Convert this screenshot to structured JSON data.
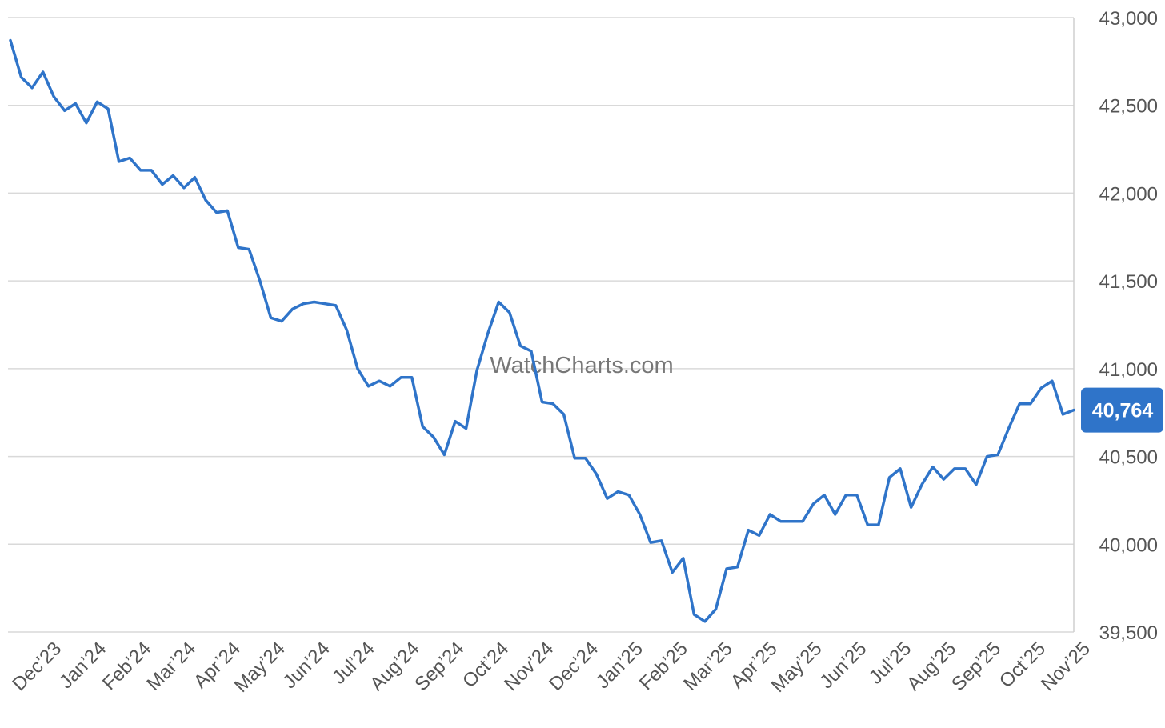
{
  "watermark": "WatchCharts.com",
  "chart_data": {
    "type": "line",
    "title": "",
    "xlabel": "",
    "ylabel": "",
    "ylim": [
      39500,
      43000
    ],
    "y_ticks": [
      "43,000",
      "42,500",
      "42,000",
      "41,500",
      "41,000",
      "40,500",
      "40,000",
      "39,500"
    ],
    "x_tick_labels": [
      "Dec’23",
      "Jan’24",
      "Feb’24",
      "Mar’24",
      "Apr’24",
      "May’24",
      "Jun’24",
      "Jul’24",
      "Aug’24",
      "Sep’24",
      "Oct’24",
      "Nov’24",
      "Dec’24",
      "Jan’25",
      "Feb’25",
      "Mar’25",
      "Apr’25",
      "May’25",
      "Jun’25",
      "Jul’25",
      "Aug’25",
      "Sep’25",
      "Oct’25",
      "Nov’25"
    ],
    "grid": true,
    "line_color": "#2f74c9",
    "current_value_label": "40,764",
    "series": [
      {
        "x_start": "Nov’23",
        "x_end": "Nov’25",
        "values": [
          42870,
          42660,
          42600,
          42690,
          42550,
          42470,
          42510,
          42400,
          42520,
          42480,
          42180,
          42200,
          42130,
          42130,
          42050,
          42100,
          42030,
          42090,
          41960,
          41890,
          41900,
          41690,
          41680,
          41500,
          41290,
          41270,
          41340,
          41370,
          41380,
          41370,
          41360,
          41220,
          41000,
          40900,
          40930,
          40900,
          40950,
          40950,
          40670,
          40610,
          40510,
          40700,
          40660,
          40990,
          41200,
          41380,
          41320,
          41130,
          41100,
          40810,
          40800,
          40740,
          40490,
          40490,
          40400,
          40260,
          40300,
          40280,
          40170,
          40010,
          40020,
          39840,
          39920,
          39600,
          39560,
          39630,
          39860,
          39870,
          40080,
          40050,
          40170,
          40130,
          40130,
          40130,
          40230,
          40280,
          40170,
          40280,
          40280,
          40110,
          40110,
          40380,
          40430,
          40210,
          40340,
          40440,
          40370,
          40430,
          40430,
          40340,
          40500,
          40510,
          40660,
          40800,
          40800,
          40890,
          40930,
          40740,
          40764
        ]
      }
    ]
  }
}
